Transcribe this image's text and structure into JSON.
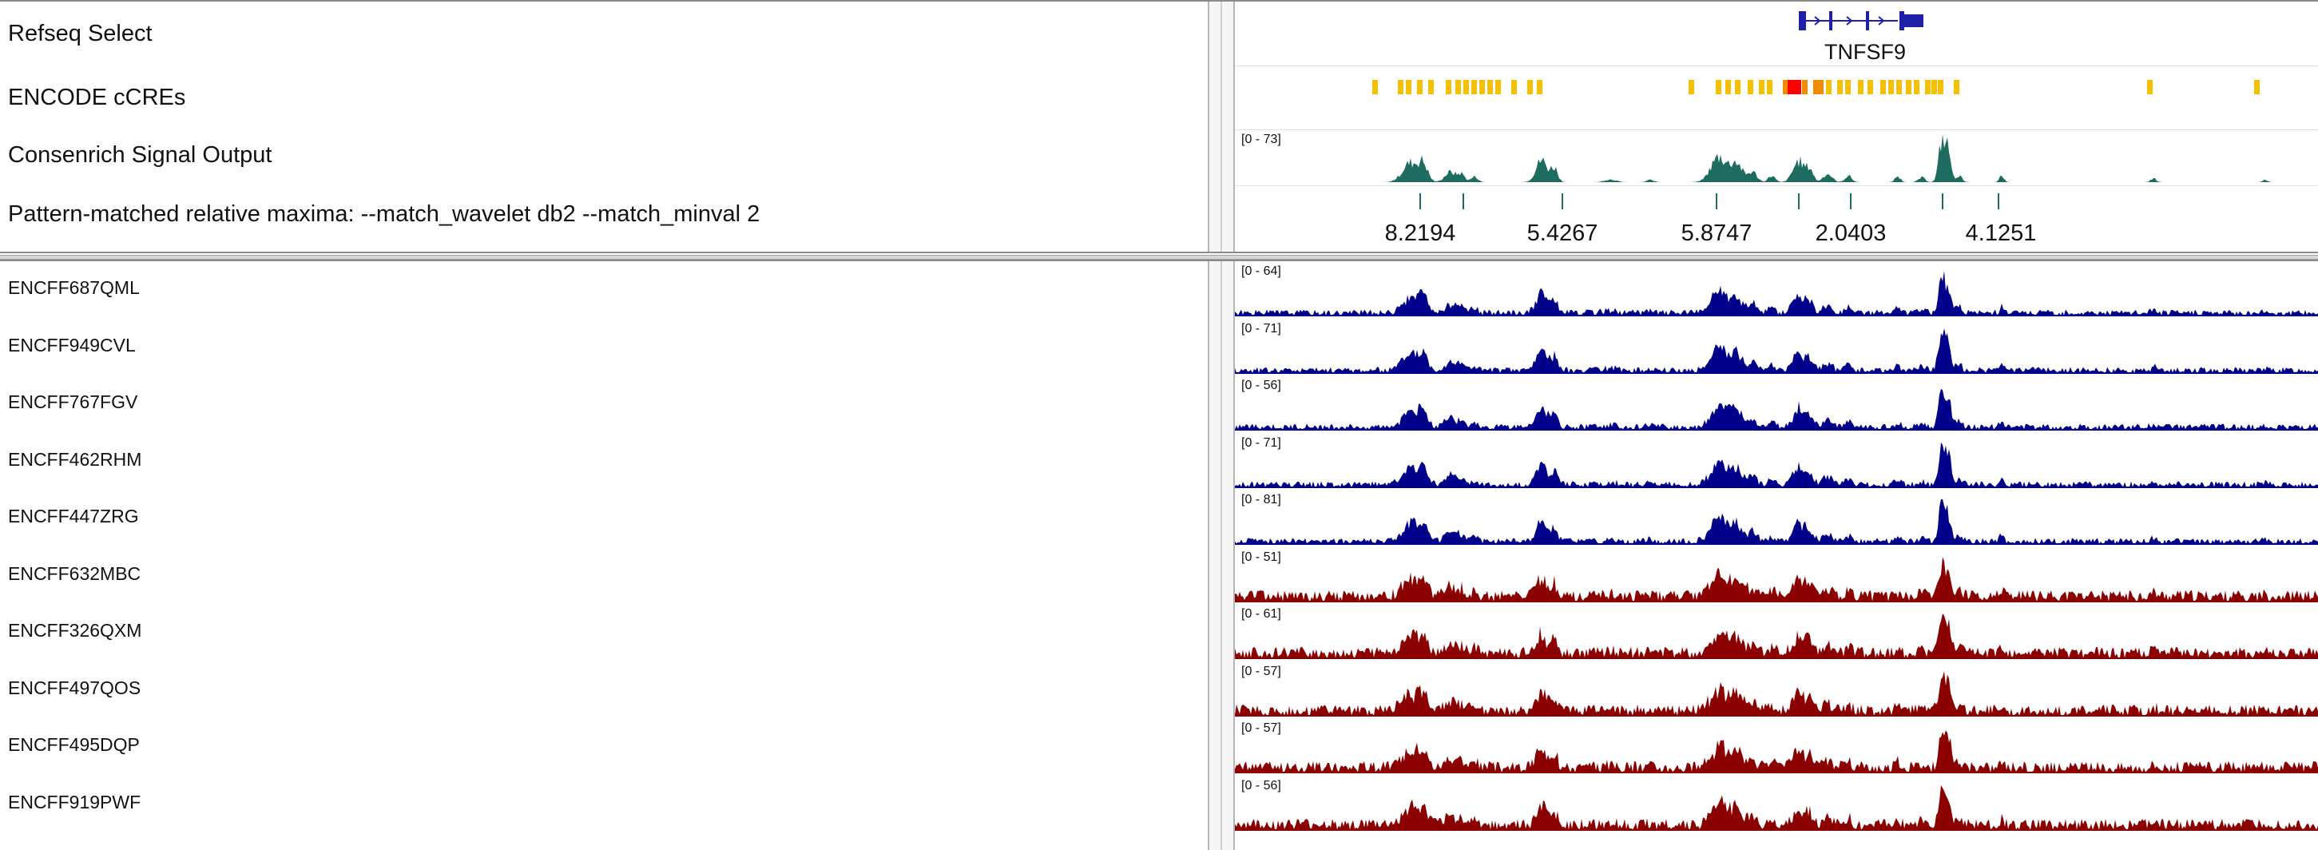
{
  "top_tracks": [
    {
      "name": "Refseq Select"
    },
    {
      "name": "ENCODE cCREs"
    },
    {
      "name": "Consenrich Signal Output",
      "range": "[0 - 73]"
    },
    {
      "name": "Pattern-matched relative maxima: --match_wavelet db2 --match_minval 2"
    }
  ],
  "gene": {
    "name": "TNFSF9",
    "color": "#1f1fa8"
  },
  "ccre_colors": {
    "distal": "#f5c000",
    "proximal": "#f08c00",
    "promoter": "#ff0000"
  },
  "consenrich_color": "#1e6b60",
  "maxima_labels": [
    "8.2194",
    "5.4267",
    "5.8747",
    "2.0403",
    "4.1251"
  ],
  "bottom_tracks": [
    {
      "name": "ENCFF687QML",
      "range": "[0 - 64]",
      "color": "#00008b"
    },
    {
      "name": "ENCFF949CVL",
      "range": "[0 - 71]",
      "color": "#00008b"
    },
    {
      "name": "ENCFF767FGV",
      "range": "[0 - 56]",
      "color": "#00008b"
    },
    {
      "name": "ENCFF462RHM",
      "range": "[0 - 71]",
      "color": "#00008b"
    },
    {
      "name": "ENCFF447ZRG",
      "range": "[0 - 81]",
      "color": "#00008b"
    },
    {
      "name": "ENCFF632MBC",
      "range": "[0 - 51]",
      "color": "#8b0000"
    },
    {
      "name": "ENCFF326QXM",
      "range": "[0 - 61]",
      "color": "#8b0000"
    },
    {
      "name": "ENCFF497QOS",
      "range": "[0 - 57]",
      "color": "#8b0000"
    },
    {
      "name": "ENCFF495DQP",
      "range": "[0 - 57]",
      "color": "#8b0000"
    },
    {
      "name": "ENCFF919PWF",
      "range": "[0 - 56]",
      "color": "#8b0000"
    }
  ]
}
